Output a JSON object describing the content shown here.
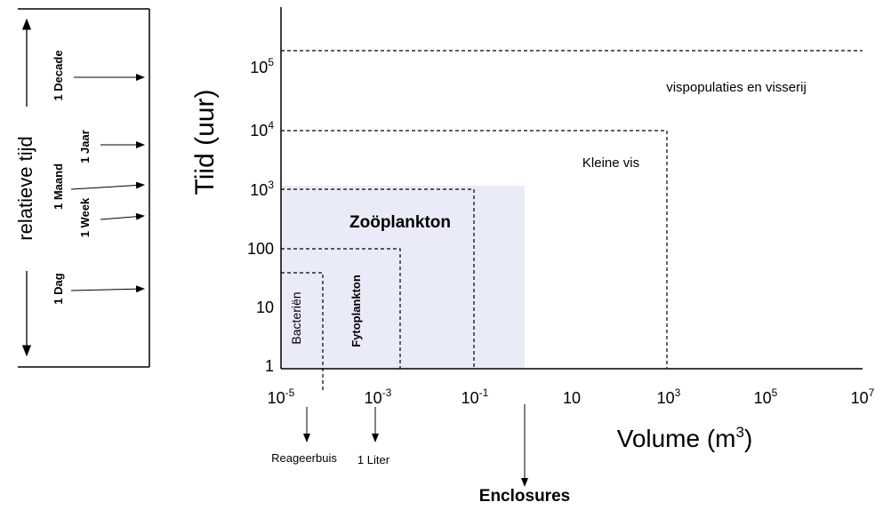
{
  "left_scale": {
    "title": "relatieve tijd",
    "marks": [
      "1 Decade",
      "1 Jaar",
      "1 Maand",
      "1 Week",
      "1 Dag"
    ]
  },
  "axes": {
    "y_title": "Tiid (uur)",
    "x_title": {
      "text": "Volume (m",
      "sup": "3",
      "end": ")"
    },
    "y_ticks": [
      {
        "base": "1"
      },
      {
        "base": "10"
      },
      {
        "base": "100"
      },
      {
        "base": "10",
        "exp": "3"
      },
      {
        "base": "10",
        "exp": "4"
      },
      {
        "base": "10",
        "exp": "5"
      }
    ],
    "x_ticks": [
      {
        "base": "10",
        "exp": "-5"
      },
      {
        "base": "10",
        "exp": "-3"
      },
      {
        "base": "10",
        "exp": "-1"
      },
      {
        "base": "10"
      },
      {
        "base": "10",
        "exp": "3"
      },
      {
        "base": "10",
        "exp": "5"
      },
      {
        "base": "10",
        "exp": "7"
      }
    ]
  },
  "regions": [
    "Bacteriën",
    "Fytoplankton",
    "Zoöplankton",
    "Kleine vis",
    "vispopulaties en visserij"
  ],
  "containers": [
    "Reageerbuis",
    "1 Liter",
    "Enclosures"
  ]
}
